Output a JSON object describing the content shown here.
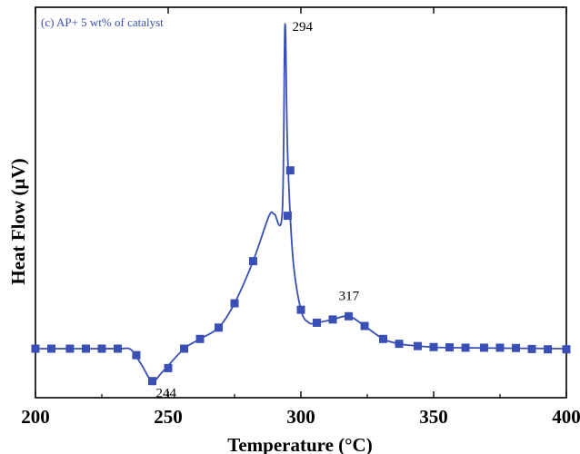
{
  "chart_data": {
    "type": "line",
    "title": "(c) AP+ 5 wt% of catalyst",
    "xlabel": "Temperature (°C)",
    "ylabel": "Heat Flow (µV)",
    "xlim": [
      200,
      400
    ],
    "y_ticks_shown": false,
    "x_ticks": [
      200,
      250,
      300,
      350,
      400
    ],
    "x_tick_labels": [
      "200",
      "250",
      "300",
      "350",
      "400"
    ],
    "series": [
      {
        "color": "#3a4fb5",
        "marker": "square",
        "curve": [
          [
            200,
            0.0
          ],
          [
            225,
            0.0
          ],
          [
            232,
            0.0
          ],
          [
            236,
            -0.3
          ],
          [
            240,
            -5.0
          ],
          [
            244,
            -10.0
          ],
          [
            248,
            -7.0
          ],
          [
            256,
            0.0
          ],
          [
            262,
            3.0
          ],
          [
            269,
            6.5
          ],
          [
            275,
            14.0
          ],
          [
            282,
            27.0
          ],
          [
            288,
            41.0
          ],
          [
            290,
            41.5
          ],
          [
            293,
            42.5
          ],
          [
            294,
            100.0
          ],
          [
            295,
            60.0
          ],
          [
            297,
            28.0
          ],
          [
            300,
            12.0
          ],
          [
            303,
            8.0
          ],
          [
            306,
            8.0
          ],
          [
            312,
            9.0
          ],
          [
            318,
            10.0
          ],
          [
            324,
            7.0
          ],
          [
            331,
            3.0
          ],
          [
            337,
            1.5
          ],
          [
            344,
            0.8
          ],
          [
            350,
            0.5
          ],
          [
            356,
            0.3
          ],
          [
            400,
            0.0
          ]
        ],
        "markers": [
          [
            200,
            0.0
          ],
          [
            206,
            0.0
          ],
          [
            213,
            0.0
          ],
          [
            219,
            0.0
          ],
          [
            225,
            0.0
          ],
          [
            231,
            0.0
          ],
          [
            238,
            -2.0
          ],
          [
            244,
            -10.0
          ],
          [
            250,
            -6.0
          ],
          [
            256,
            0.0
          ],
          [
            262,
            3.0
          ],
          [
            269,
            6.5
          ],
          [
            275,
            14.0
          ],
          [
            282,
            27.0
          ],
          [
            295,
            41.0
          ],
          [
            296,
            55.0
          ],
          [
            300,
            12.0
          ],
          [
            306,
            8.0
          ],
          [
            312,
            9.0
          ],
          [
            318,
            10.0
          ],
          [
            324,
            7.0
          ],
          [
            331,
            3.0
          ],
          [
            337,
            1.5
          ],
          [
            344,
            0.8
          ],
          [
            350,
            0.5
          ],
          [
            356,
            0.4
          ],
          [
            362,
            0.3
          ],
          [
            369,
            0.3
          ],
          [
            375,
            0.3
          ],
          [
            381,
            0.2
          ],
          [
            387,
            -0.1
          ],
          [
            393,
            -0.2
          ],
          [
            400,
            -0.2
          ]
        ]
      }
    ],
    "annotations": [
      {
        "text": "294",
        "x": 294,
        "y": 100.0
      },
      {
        "text": "244",
        "x": 244,
        "y": -10.0
      },
      {
        "text": "317",
        "x": 317,
        "y": 10.0
      }
    ]
  }
}
